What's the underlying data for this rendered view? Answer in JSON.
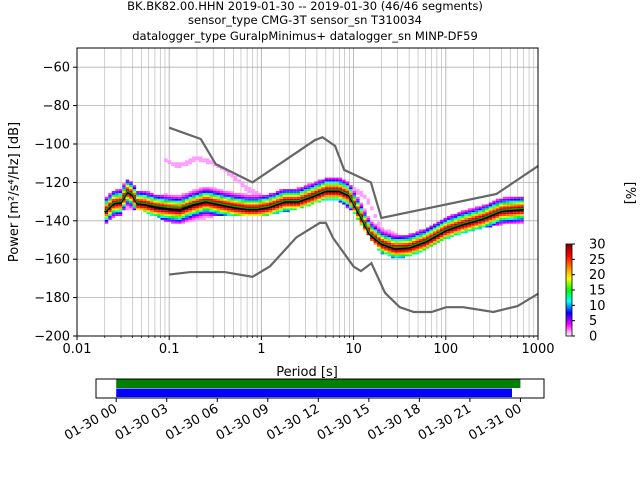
{
  "title": {
    "line1": "BK.BK82.00.HHN   2019-01-30 -- 2019-01-30  (46/46 segments)",
    "line2": "sensor_type CMG-3T sensor_sn T310034",
    "line3": "datalogger_type GuralpMinimus+ datalogger_sn MINP-DF59"
  },
  "chart_data": [
    {
      "type": "heatmap",
      "description_kind": "probabilistic power spectral density",
      "xlabel": "Period [s]",
      "ylabel": "Power [m²/s⁴/Hz] [dB]",
      "xscale": "log",
      "xlim": [
        0.01,
        1000
      ],
      "ylim": [
        -200,
        -50
      ],
      "x_ticks": [
        "0.01",
        "0.1",
        "1",
        "10",
        "100",
        "1000"
      ],
      "x_tick_values": [
        0.01,
        0.1,
        1,
        10,
        100,
        1000
      ],
      "y_ticks": [
        "−200",
        "−180",
        "−160",
        "−140",
        "−120",
        "−100",
        "−80",
        "−60"
      ],
      "y_tick_values": [
        -200,
        -180,
        -160,
        -140,
        -120,
        -100,
        -80,
        -60
      ],
      "grid": true,
      "colorbar": {
        "label": "[%]",
        "ticks": [
          "0",
          "5",
          "10",
          "15",
          "20",
          "25",
          "30"
        ],
        "tick_values": [
          0,
          5,
          10,
          15,
          20,
          25,
          30
        ],
        "range": [
          0,
          30
        ],
        "colors": [
          "#ffffff",
          "#ff00ff",
          "#0000ff",
          "#00ffff",
          "#00ff00",
          "#ffff00",
          "#ff7f00",
          "#ff0000",
          "#7f0000"
        ]
      },
      "noise_model_color": "#666666",
      "high_noise_model": [
        [
          0.1,
          -91.5
        ],
        [
          0.22,
          -97.4
        ],
        [
          0.32,
          -110.5
        ],
        [
          0.8,
          -120
        ],
        [
          3.8,
          -98
        ],
        [
          4.6,
          -96.5
        ],
        [
          6.3,
          -101
        ],
        [
          7.9,
          -113.5
        ],
        [
          15.4,
          -120
        ],
        [
          20,
          -138.5
        ],
        [
          354.8,
          -126
        ],
        [
          1000,
          -111.5
        ]
      ],
      "low_noise_model": [
        [
          0.1,
          -168
        ],
        [
          0.17,
          -166.7
        ],
        [
          0.4,
          -166.7
        ],
        [
          0.8,
          -169.2
        ],
        [
          1.24,
          -163.7
        ],
        [
          2.4,
          -148.6
        ],
        [
          4.3,
          -141.1
        ],
        [
          5.0,
          -141.1
        ],
        [
          6.0,
          -149.0
        ],
        [
          10.0,
          -163.8
        ],
        [
          12.0,
          -166.2
        ],
        [
          15.6,
          -162.1
        ],
        [
          21.9,
          -177.5
        ],
        [
          31.6,
          -185.0
        ],
        [
          45.0,
          -187.5
        ],
        [
          70.0,
          -187.5
        ],
        [
          101.0,
          -185.0
        ],
        [
          154.0,
          -185.0
        ],
        [
          328.0,
          -187.5
        ],
        [
          600.0,
          -184.4
        ],
        [
          1000,
          -178.0
        ]
      ],
      "mean_curve": [
        [
          0.02,
          -135.5
        ],
        [
          0.025,
          -131
        ],
        [
          0.03,
          -130.5
        ],
        [
          0.035,
          -125
        ],
        [
          0.04,
          -126.5
        ],
        [
          0.045,
          -131
        ],
        [
          0.055,
          -131.5
        ],
        [
          0.07,
          -133
        ],
        [
          0.1,
          -134
        ],
        [
          0.13,
          -134.5
        ],
        [
          0.18,
          -132
        ],
        [
          0.25,
          -130
        ],
        [
          0.35,
          -131.5
        ],
        [
          0.5,
          -133
        ],
        [
          0.7,
          -134
        ],
        [
          0.9,
          -134
        ],
        [
          1.2,
          -133
        ],
        [
          1.8,
          -130
        ],
        [
          2.5,
          -130
        ],
        [
          3.5,
          -127.5
        ],
        [
          5,
          -124.5
        ],
        [
          7,
          -124.5
        ],
        [
          9,
          -127
        ],
        [
          12,
          -138
        ],
        [
          15,
          -147
        ],
        [
          20,
          -152
        ],
        [
          28,
          -154.5
        ],
        [
          40,
          -154
        ],
        [
          60,
          -151
        ],
        [
          100,
          -145
        ],
        [
          150,
          -142
        ],
        [
          250,
          -139
        ],
        [
          400,
          -135
        ],
        [
          700,
          -134
        ]
      ],
      "median_curve": [
        [
          0.02,
          -135
        ],
        [
          0.025,
          -130.5
        ],
        [
          0.03,
          -130
        ],
        [
          0.035,
          -124.5
        ],
        [
          0.04,
          -126
        ],
        [
          0.045,
          -130.5
        ],
        [
          0.055,
          -131
        ],
        [
          0.07,
          -132
        ],
        [
          0.1,
          -133
        ],
        [
          0.13,
          -133
        ],
        [
          0.18,
          -131
        ],
        [
          0.25,
          -129.5
        ],
        [
          0.35,
          -131
        ],
        [
          0.5,
          -132.5
        ],
        [
          0.7,
          -133.5
        ],
        [
          0.9,
          -133.5
        ],
        [
          1.2,
          -132.5
        ],
        [
          1.8,
          -129.5
        ],
        [
          2.5,
          -129.5
        ],
        [
          3.5,
          -127
        ],
        [
          5,
          -124
        ],
        [
          7,
          -124
        ],
        [
          9,
          -126.5
        ],
        [
          12,
          -137.5
        ],
        [
          15,
          -146.5
        ],
        [
          20,
          -151.5
        ],
        [
          28,
          -154
        ],
        [
          40,
          -153.5
        ],
        [
          60,
          -150.5
        ],
        [
          100,
          -144.5
        ],
        [
          150,
          -141.5
        ],
        [
          250,
          -138.5
        ],
        [
          400,
          -134.5
        ],
        [
          700,
          -133.5
        ]
      ],
      "upper_outlier_curve": [
        [
          0.09,
          -108
        ],
        [
          0.12,
          -111
        ],
        [
          0.15,
          -110
        ],
        [
          0.2,
          -107
        ],
        [
          0.28,
          -109
        ],
        [
          0.4,
          -113
        ],
        [
          0.5,
          -117
        ],
        [
          0.6,
          -120
        ],
        [
          0.7,
          -123
        ],
        [
          1.0,
          -127
        ],
        [
          2.0,
          -128
        ],
        [
          3.0,
          -124
        ],
        [
          4.0,
          -121
        ],
        [
          6.0,
          -120
        ],
        [
          8.0,
          -121
        ],
        [
          10,
          -123
        ],
        [
          14,
          -128
        ],
        [
          20,
          -144
        ],
        [
          30,
          -148
        ],
        [
          50,
          -148
        ],
        [
          80,
          -145
        ],
        [
          120,
          -140
        ],
        [
          250,
          -137
        ],
        [
          500,
          -132
        ],
        [
          650,
          -130
        ]
      ],
      "lower_outlier_curve": [
        [
          0.03,
          -134
        ],
        [
          0.05,
          -134
        ],
        [
          0.08,
          -138
        ],
        [
          0.12,
          -141
        ],
        [
          0.2,
          -139
        ],
        [
          0.3,
          -137
        ],
        [
          0.5,
          -137
        ],
        [
          0.8,
          -137
        ],
        [
          1.2,
          -136
        ],
        [
          2.0,
          -134
        ],
        [
          3.0,
          -132
        ],
        [
          5.0,
          -128
        ],
        [
          7.0,
          -129
        ],
        [
          10,
          -135
        ],
        [
          14,
          -146
        ],
        [
          20,
          -156
        ],
        [
          30,
          -159
        ],
        [
          50,
          -156
        ],
        [
          80,
          -151
        ],
        [
          120,
          -147
        ],
        [
          200,
          -144
        ],
        [
          400,
          -141
        ],
        [
          650,
          -140
        ]
      ]
    },
    {
      "type": "bar",
      "description_kind": "data coverage timeline",
      "x_ticks": [
        "01-30 00",
        "01-30 03",
        "01-30 06",
        "01-30 09",
        "01-30 12",
        "01-30 15",
        "01-30 18",
        "01-30 21",
        "01-31 00"
      ],
      "x_tick_hours": [
        0,
        3,
        6,
        9,
        12,
        15,
        18,
        21,
        24
      ],
      "xlim_hours": [
        -1.2,
        25.4
      ],
      "series": [
        {
          "color": "#008000",
          "start_hour": 0.0,
          "end_hour": 24.0
        },
        {
          "color": "#0000ff",
          "start_hour": 0.0,
          "end_hour": 23.5
        }
      ]
    }
  ]
}
